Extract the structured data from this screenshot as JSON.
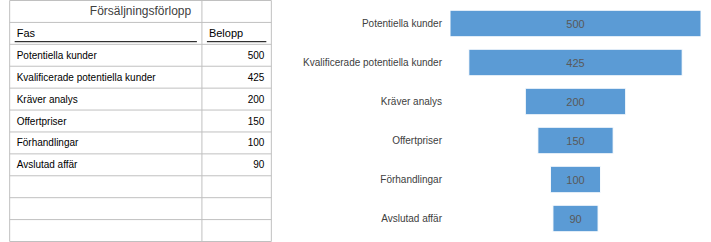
{
  "chart_data": {
    "type": "funnel",
    "title": "Försäljningsförlopp",
    "annotations": [
      "Fas",
      "Belopp"
    ],
    "categories": [
      "Potentiella kunder",
      "Kvalificerade potentiella kunder",
      "Kräver analys",
      "Offertpriser",
      "Förhandlingar",
      "Avslutad affär"
    ],
    "values": [
      500,
      425,
      200,
      150,
      100,
      90
    ],
    "color": "#5B9BD5",
    "xlim": [
      0,
      500
    ],
    "orientation": "horizontal",
    "data_labels": true,
    "tick_labels": "y"
  }
}
